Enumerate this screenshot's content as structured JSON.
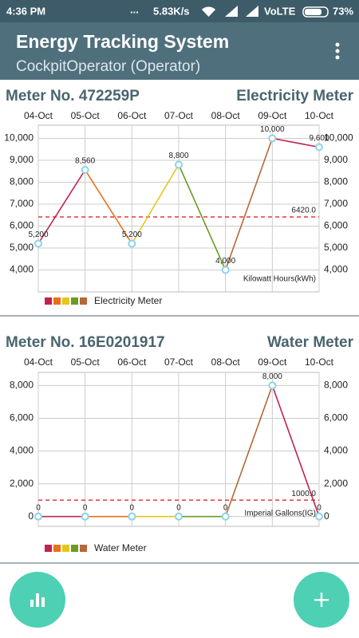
{
  "status_bar": {
    "time": "4:36 PM",
    "dots": "...",
    "speed": "5.83K/s",
    "network": "VoLTE",
    "battery": "73%"
  },
  "app_bar": {
    "title": "Energy Tracking System",
    "subtitle": "CockpitOperator (Operator)"
  },
  "chart_data": [
    {
      "type": "line",
      "title": "Meter No. 472259P",
      "subtitle": "Electricity Meter",
      "categories": [
        "04-Oct",
        "05-Oct",
        "06-Oct",
        "07-Oct",
        "08-Oct",
        "09-Oct",
        "10-Oct"
      ],
      "series": [
        {
          "name": "Electricity Meter",
          "values": [
            5200,
            8560,
            5200,
            8800,
            4000,
            10000,
            9600
          ],
          "value_labels": [
            "5,200",
            "8,560",
            "5,200",
            "8,800",
            "4,000",
            "10,000",
            "9,600"
          ],
          "segment_colors": [
            "#c0234f",
            "#e8711a",
            "#e6c619",
            "#6b9b25",
            "#b5683a"
          ]
        }
      ],
      "ylim": [
        3000,
        10600
      ],
      "yticks": [
        {
          "value": 4000,
          "label": "4,000"
        },
        {
          "value": 5000,
          "label": "5,000"
        },
        {
          "value": 6000,
          "label": "6,000"
        },
        {
          "value": 7000,
          "label": "7,000"
        },
        {
          "value": 8000,
          "label": "8,000"
        },
        {
          "value": 9000,
          "label": "9,000"
        },
        {
          "value": 10000,
          "label": "10,000"
        }
      ],
      "limit": {
        "value": 6420,
        "label": "6420.0",
        "color": "#e53935"
      },
      "unit_label": "Kilowatt Hours(kWh)",
      "grid": true
    },
    {
      "type": "line",
      "title": "Meter No. 16E0201917",
      "subtitle": "Water Meter",
      "categories": [
        "04-Oct",
        "05-Oct",
        "06-Oct",
        "07-Oct",
        "08-Oct",
        "09-Oct",
        "10-Oct"
      ],
      "series": [
        {
          "name": "Water Meter",
          "values": [
            0,
            0,
            0,
            0,
            0,
            8000,
            0
          ],
          "value_labels": [
            "0",
            "0",
            "0",
            "0",
            "0",
            "8,000",
            "0"
          ],
          "segment_colors": [
            "#c0234f",
            "#e8711a",
            "#e6c619",
            "#6b9b25",
            "#b5683a"
          ]
        }
      ],
      "ylim": [
        -600,
        8800
      ],
      "yticks": [
        0,
        {
          "value": 2000,
          "label": "2,000"
        },
        {
          "value": 4000,
          "label": "4,000"
        },
        {
          "value": 6000,
          "label": "6,000"
        },
        {
          "value": 8000,
          "label": "8,000"
        }
      ],
      "limit": {
        "value": 1000,
        "label": "1000.0",
        "color": "#e53935"
      },
      "unit_label": "Imperial Gallons(IG)",
      "grid": true
    }
  ]
}
